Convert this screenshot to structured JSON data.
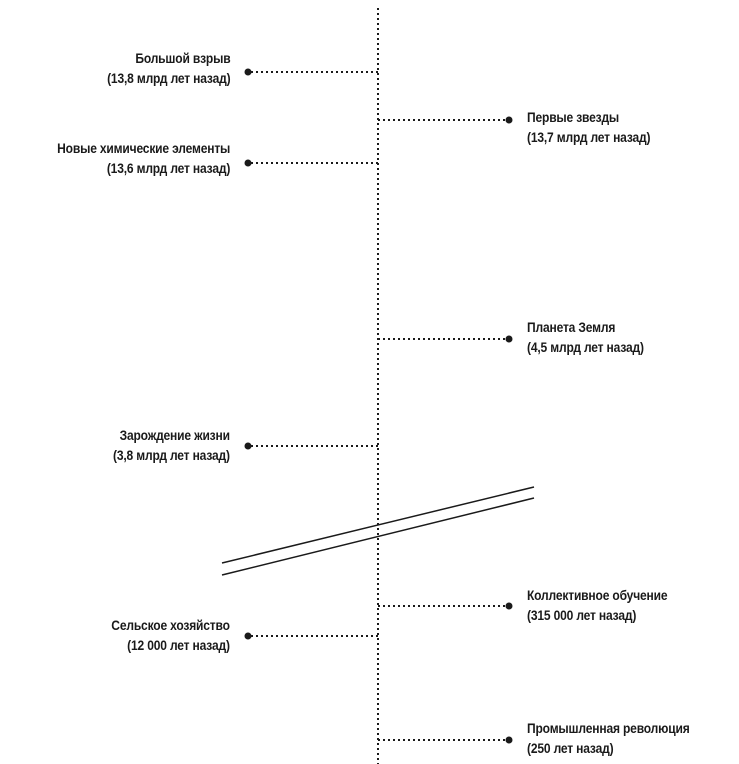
{
  "timeline": {
    "events": [
      {
        "title": "Большой взрыв",
        "date": "(13,8 млрд лет назад)",
        "side": "left"
      },
      {
        "title": "Первые звезды",
        "date": "(13,7 млрд лет назад)",
        "side": "right"
      },
      {
        "title": "Новые химические элементы",
        "date": "(13,6 млрд лет назад)",
        "side": "left"
      },
      {
        "title": "Планета Земля",
        "date": "(4,5 млрд лет назад)",
        "side": "right"
      },
      {
        "title": "Зарождение жизни",
        "date": "(3,8 млрд лет назад)",
        "side": "left"
      },
      {
        "title": "Коллективное обучение",
        "date": "(315 000 лет назад)",
        "side": "right"
      },
      {
        "title": "Сельское хозяйство",
        "date": "(12 000 лет назад)",
        "side": "left"
      },
      {
        "title": "Промышленная революция",
        "date": "(250 лет назад)",
        "side": "right"
      }
    ]
  },
  "colors": {
    "ink": "#1a1a1a",
    "background": "#ffffff"
  }
}
